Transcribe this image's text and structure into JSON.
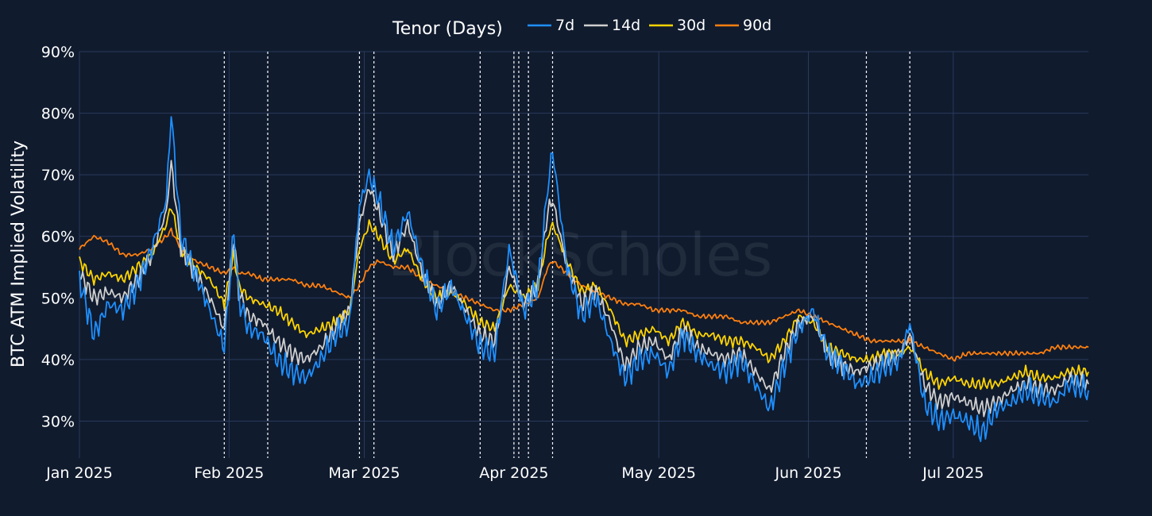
{
  "chart_data": {
    "type": "line",
    "watermark": "BlockScholes",
    "ylabel": "BTC ATM Implied Volatility",
    "yticks": [
      "30%",
      "40%",
      "50%",
      "60%",
      "70%",
      "80%",
      "90%"
    ],
    "ylim": [
      24,
      90
    ],
    "xticks": [
      "Jan 2025",
      "Feb 2025",
      "Mar 2025",
      "Apr 2025",
      "May 2025",
      "Jun 2025",
      "Jul 2025"
    ],
    "xlim": [
      "2025-01-01",
      "2025-07-29"
    ],
    "grid": true,
    "legend": {
      "title": "Tenor (Days)",
      "position": "top"
    },
    "event_lines": [
      "2025-01-31",
      "2025-02-09",
      "2025-02-28",
      "2025-03-03",
      "2025-03-25",
      "2025-04-01",
      "2025-04-02",
      "2025-04-04",
      "2025-04-09",
      "2025-06-13",
      "2025-06-22"
    ],
    "dates": [
      "2025-01-01",
      "2025-01-04",
      "2025-01-07",
      "2025-01-10",
      "2025-01-13",
      "2025-01-16",
      "2025-01-19",
      "2025-01-20",
      "2025-01-22",
      "2025-01-25",
      "2025-01-28",
      "2025-01-31",
      "2025-02-02",
      "2025-02-03",
      "2025-02-05",
      "2025-02-08",
      "2025-02-11",
      "2025-02-14",
      "2025-02-17",
      "2025-02-20",
      "2025-02-23",
      "2025-02-26",
      "2025-02-28",
      "2025-03-02",
      "2025-03-04",
      "2025-03-07",
      "2025-03-10",
      "2025-03-13",
      "2025-03-16",
      "2025-03-19",
      "2025-03-22",
      "2025-03-25",
      "2025-03-28",
      "2025-03-31",
      "2025-04-03",
      "2025-04-06",
      "2025-04-08",
      "2025-04-09",
      "2025-04-12",
      "2025-04-15",
      "2025-04-18",
      "2025-04-21",
      "2025-04-24",
      "2025-04-27",
      "2025-04-30",
      "2025-05-03",
      "2025-05-06",
      "2025-05-09",
      "2025-05-12",
      "2025-05-15",
      "2025-05-18",
      "2025-05-21",
      "2025-05-24",
      "2025-05-27",
      "2025-05-30",
      "2025-06-02",
      "2025-06-05",
      "2025-06-08",
      "2025-06-11",
      "2025-06-14",
      "2025-06-17",
      "2025-06-20",
      "2025-06-22",
      "2025-06-25",
      "2025-06-28",
      "2025-07-01",
      "2025-07-04",
      "2025-07-07",
      "2025-07-10",
      "2025-07-13",
      "2025-07-16",
      "2025-07-19",
      "2025-07-22",
      "2025-07-25",
      "2025-07-29"
    ],
    "series": [
      {
        "name": "7d",
        "color": "#1e90ff",
        "values": [
          53,
          44,
          49,
          48,
          52,
          58,
          66,
          80,
          60,
          54,
          48,
          42,
          61,
          50,
          45,
          44,
          40,
          38,
          37,
          40,
          44,
          46,
          65,
          70,
          66,
          58,
          64,
          55,
          48,
          52,
          47,
          42,
          41,
          58,
          48,
          52,
          68,
          74,
          55,
          47,
          50,
          43,
          37,
          40,
          41,
          38,
          44,
          41,
          39,
          38,
          40,
          36,
          32,
          39,
          45,
          48,
          41,
          39,
          36,
          37,
          39,
          40,
          46,
          33,
          30,
          31,
          30,
          28,
          32,
          33,
          35,
          34,
          33,
          36,
          35
        ]
      },
      {
        "name": "14d",
        "color": "#cfcfcf",
        "values": [
          54,
          50,
          51,
          50,
          53,
          57,
          64,
          72,
          58,
          54,
          50,
          45,
          60,
          51,
          47,
          46,
          43,
          41,
          40,
          42,
          45,
          48,
          62,
          68,
          64,
          57,
          62,
          54,
          49,
          52,
          48,
          44,
          43,
          55,
          49,
          52,
          64,
          66,
          55,
          49,
          51,
          46,
          39,
          42,
          43,
          40,
          45,
          42,
          41,
          40,
          41,
          38,
          35,
          41,
          46,
          47,
          41,
          39,
          38,
          39,
          40,
          41,
          44,
          36,
          33,
          34,
          33,
          32,
          33,
          35,
          36,
          35,
          35,
          37,
          36
        ]
      },
      {
        "name": "30d",
        "color": "#ffd400",
        "values": [
          56,
          53,
          54,
          53,
          55,
          57,
          62,
          65,
          58,
          55,
          53,
          49,
          57,
          52,
          50,
          49,
          48,
          46,
          44,
          45,
          46,
          48,
          58,
          62,
          60,
          56,
          58,
          53,
          50,
          51,
          49,
          46,
          45,
          52,
          50,
          52,
          60,
          62,
          56,
          51,
          52,
          48,
          43,
          44,
          45,
          43,
          46,
          44,
          44,
          43,
          43,
          42,
          40,
          43,
          47,
          46,
          42,
          41,
          40,
          40,
          41,
          41,
          42,
          38,
          36,
          37,
          36,
          36,
          36,
          37,
          38,
          37,
          37,
          38,
          38
        ]
      },
      {
        "name": "90d",
        "color": "#ff7f0e",
        "values": [
          58,
          60,
          59,
          57,
          57,
          58,
          60,
          61,
          58,
          56,
          55,
          54,
          55,
          54,
          54,
          53,
          53,
          53,
          52,
          52,
          51,
          50,
          52,
          55,
          56,
          55,
          55,
          53,
          52,
          51,
          50,
          49,
          48,
          48,
          49,
          50,
          55,
          56,
          54,
          52,
          51,
          50,
          49,
          49,
          48,
          48,
          48,
          47,
          47,
          47,
          46,
          46,
          46,
          47,
          48,
          47,
          46,
          45,
          44,
          43,
          43,
          43,
          43,
          42,
          41,
          40,
          41,
          41,
          41,
          41,
          41,
          41,
          42,
          42,
          42
        ]
      }
    ]
  }
}
